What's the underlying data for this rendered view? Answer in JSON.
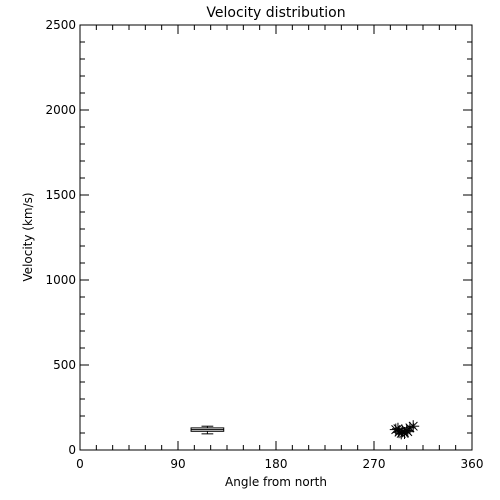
{
  "chart_data": {
    "type": "scatter",
    "title": "Velocity distribution",
    "xlabel": "Angle from north",
    "ylabel": "Velocity (km/s)",
    "xlim": [
      0,
      360
    ],
    "ylim": [
      0,
      2500
    ],
    "xticks": [
      0,
      90,
      180,
      270,
      360
    ],
    "yticks": [
      0,
      500,
      1000,
      1500,
      2000,
      2500
    ],
    "grid": false,
    "legend": "none",
    "box": {
      "x_range": [
        102,
        132
      ],
      "q1": 110,
      "q3": 130,
      "median": 120,
      "whisker_low": 95,
      "whisker_high": 140
    },
    "points": {
      "marker": "asterisk",
      "x": [
        290,
        293,
        296,
        298,
        300,
        303,
        306,
        292,
        295,
        301
      ],
      "y": [
        120,
        105,
        110,
        100,
        115,
        130,
        140,
        125,
        98,
        108
      ]
    }
  }
}
